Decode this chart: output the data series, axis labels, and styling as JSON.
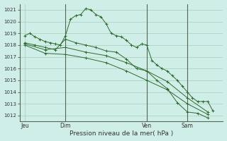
{
  "bg_color": "#d0eee8",
  "grid_color": "#a8ccbb",
  "line_color": "#2d6b2d",
  "vline_color": "#556655",
  "ylabel_ticks": [
    1012,
    1013,
    1014,
    1015,
    1016,
    1017,
    1018,
    1019,
    1020,
    1021
  ],
  "ylim": [
    1011.5,
    1021.5
  ],
  "xlabel": "Pression niveau de la mer( hPa )",
  "xtick_labels": [
    "Jeu",
    "Dim",
    "Ven",
    "Sam"
  ],
  "xtick_positions": [
    0,
    16,
    48,
    64
  ],
  "vlines_x": [
    16,
    48,
    64
  ],
  "xlim": [
    -2,
    78
  ],
  "lines": [
    {
      "x": [
        0,
        2,
        4,
        6,
        8,
        10,
        12,
        14,
        16,
        18,
        20,
        22,
        24,
        26,
        28,
        30,
        32,
        34,
        36,
        38,
        40,
        42,
        44,
        46,
        48,
        50,
        52,
        54,
        56,
        58,
        60,
        62,
        64,
        66,
        68,
        70,
        72,
        74
      ],
      "y": [
        1018.8,
        1019.0,
        1018.7,
        1018.5,
        1018.3,
        1018.2,
        1018.1,
        1018.0,
        1018.8,
        1020.2,
        1020.5,
        1020.6,
        1021.1,
        1021.0,
        1020.6,
        1020.4,
        1019.8,
        1019.0,
        1018.8,
        1018.7,
        1018.4,
        1018.0,
        1017.8,
        1018.1,
        1018.0,
        1016.7,
        1016.3,
        1016.0,
        1015.8,
        1015.4,
        1015.0,
        1014.5,
        1014.0,
        1013.5,
        1013.2,
        1013.2,
        1013.2,
        1012.4
      ]
    },
    {
      "x": [
        0,
        4,
        8,
        12,
        16,
        20,
        24,
        28,
        32,
        36,
        40,
        44,
        48,
        52,
        56,
        60,
        64,
        68,
        72
      ],
      "y": [
        1018.2,
        1018.0,
        1017.8,
        1017.6,
        1018.5,
        1018.2,
        1018.0,
        1017.8,
        1017.5,
        1017.4,
        1016.8,
        1016.0,
        1015.8,
        1015.0,
        1014.3,
        1013.1,
        1012.3,
        1012.2,
        1011.8
      ]
    },
    {
      "x": [
        0,
        8,
        16,
        24,
        32,
        40,
        48,
        56,
        64,
        72
      ],
      "y": [
        1018.1,
        1017.6,
        1017.8,
        1017.4,
        1017.1,
        1016.5,
        1015.8,
        1014.9,
        1013.5,
        1012.3
      ]
    },
    {
      "x": [
        0,
        8,
        16,
        24,
        32,
        40,
        48,
        56,
        64,
        72
      ],
      "y": [
        1018.0,
        1017.3,
        1017.2,
        1016.9,
        1016.5,
        1015.8,
        1015.0,
        1014.2,
        1013.0,
        1012.1
      ]
    }
  ]
}
